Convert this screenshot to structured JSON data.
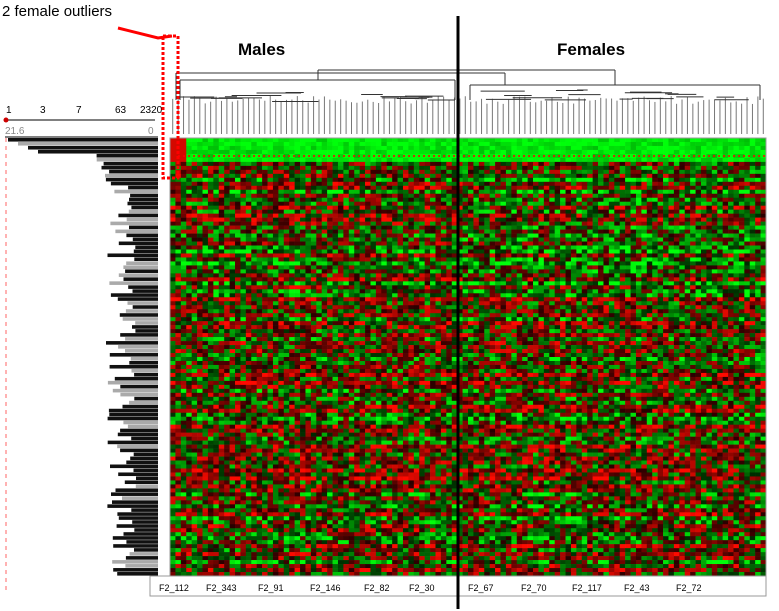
{
  "chart_data": {
    "type": "heatmap",
    "annotation": "2 female outliers",
    "groups": [
      "Males",
      "Females"
    ],
    "color_scale": {
      "low": "#00ff00",
      "mid": "#000000",
      "high": "#ff0000"
    },
    "scale_ticks": [
      "1",
      "3",
      "7",
      "63",
      "2320"
    ],
    "scale_range": [
      "21.6",
      "0"
    ],
    "column_labels": [
      "F2_112",
      "F2_343",
      "F2_91",
      "F2_146",
      "F2_82",
      "F2_30",
      "F2_67",
      "F2_70",
      "F2_117",
      "F2_43",
      "F2_72"
    ],
    "grid": {
      "rows": 110,
      "cols": 110
    },
    "female_outlier_count": 2
  }
}
